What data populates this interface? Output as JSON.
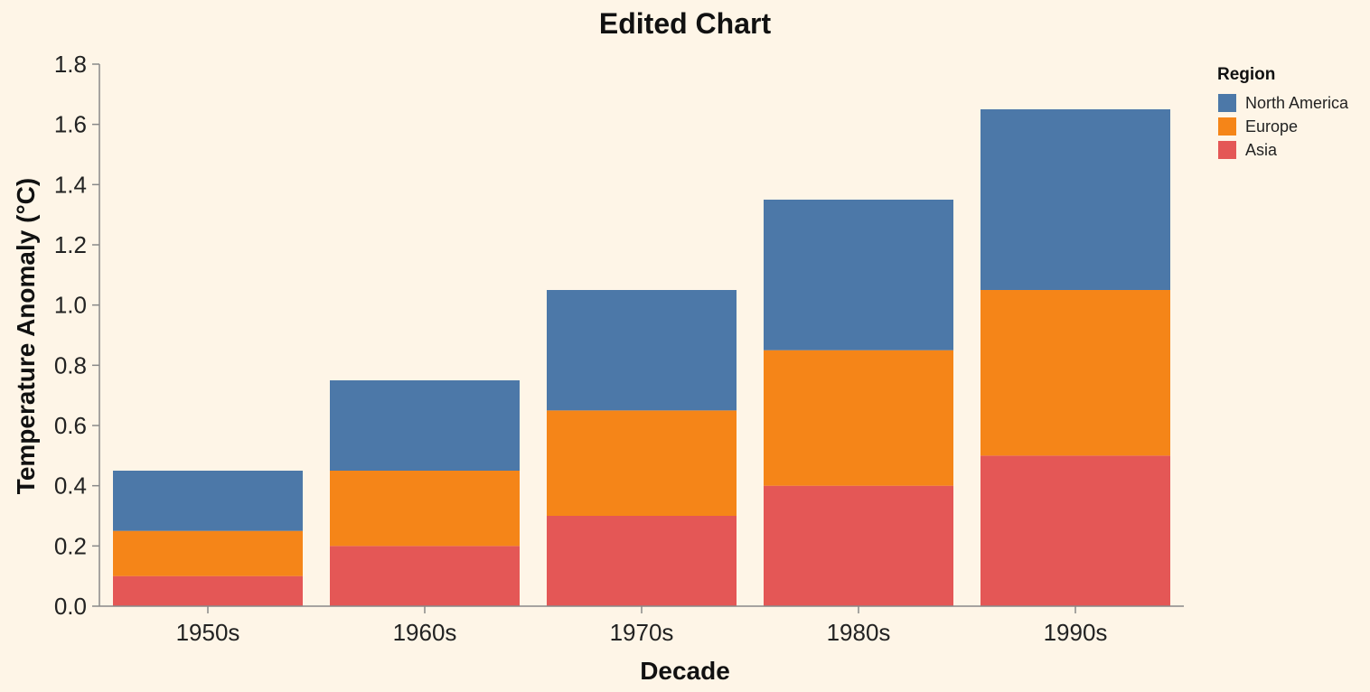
{
  "chart_data": {
    "type": "bar",
    "stacked": true,
    "title": "Edited Chart",
    "xlabel": "Decade",
    "ylabel": "Temperature Anomaly (°C)",
    "categories": [
      "1950s",
      "1960s",
      "1970s",
      "1980s",
      "1990s"
    ],
    "ylim": [
      0,
      1.8
    ],
    "yticks": [
      "0.0",
      "0.2",
      "0.4",
      "0.6",
      "0.8",
      "1.0",
      "1.2",
      "1.4",
      "1.6",
      "1.8"
    ],
    "grid": false,
    "legend": {
      "title": "Region",
      "placement": "right"
    },
    "series": [
      {
        "name": "Asia",
        "color": "#e45756",
        "values": [
          0.1,
          0.2,
          0.3,
          0.4,
          0.5
        ]
      },
      {
        "name": "Europe",
        "color": "#f58518",
        "values": [
          0.15,
          0.25,
          0.35,
          0.45,
          0.55
        ]
      },
      {
        "name": "North America",
        "color": "#4c78a8",
        "values": [
          0.2,
          0.3,
          0.4,
          0.5,
          0.6
        ]
      }
    ],
    "legend_order": [
      "North America",
      "Europe",
      "Asia"
    ]
  }
}
